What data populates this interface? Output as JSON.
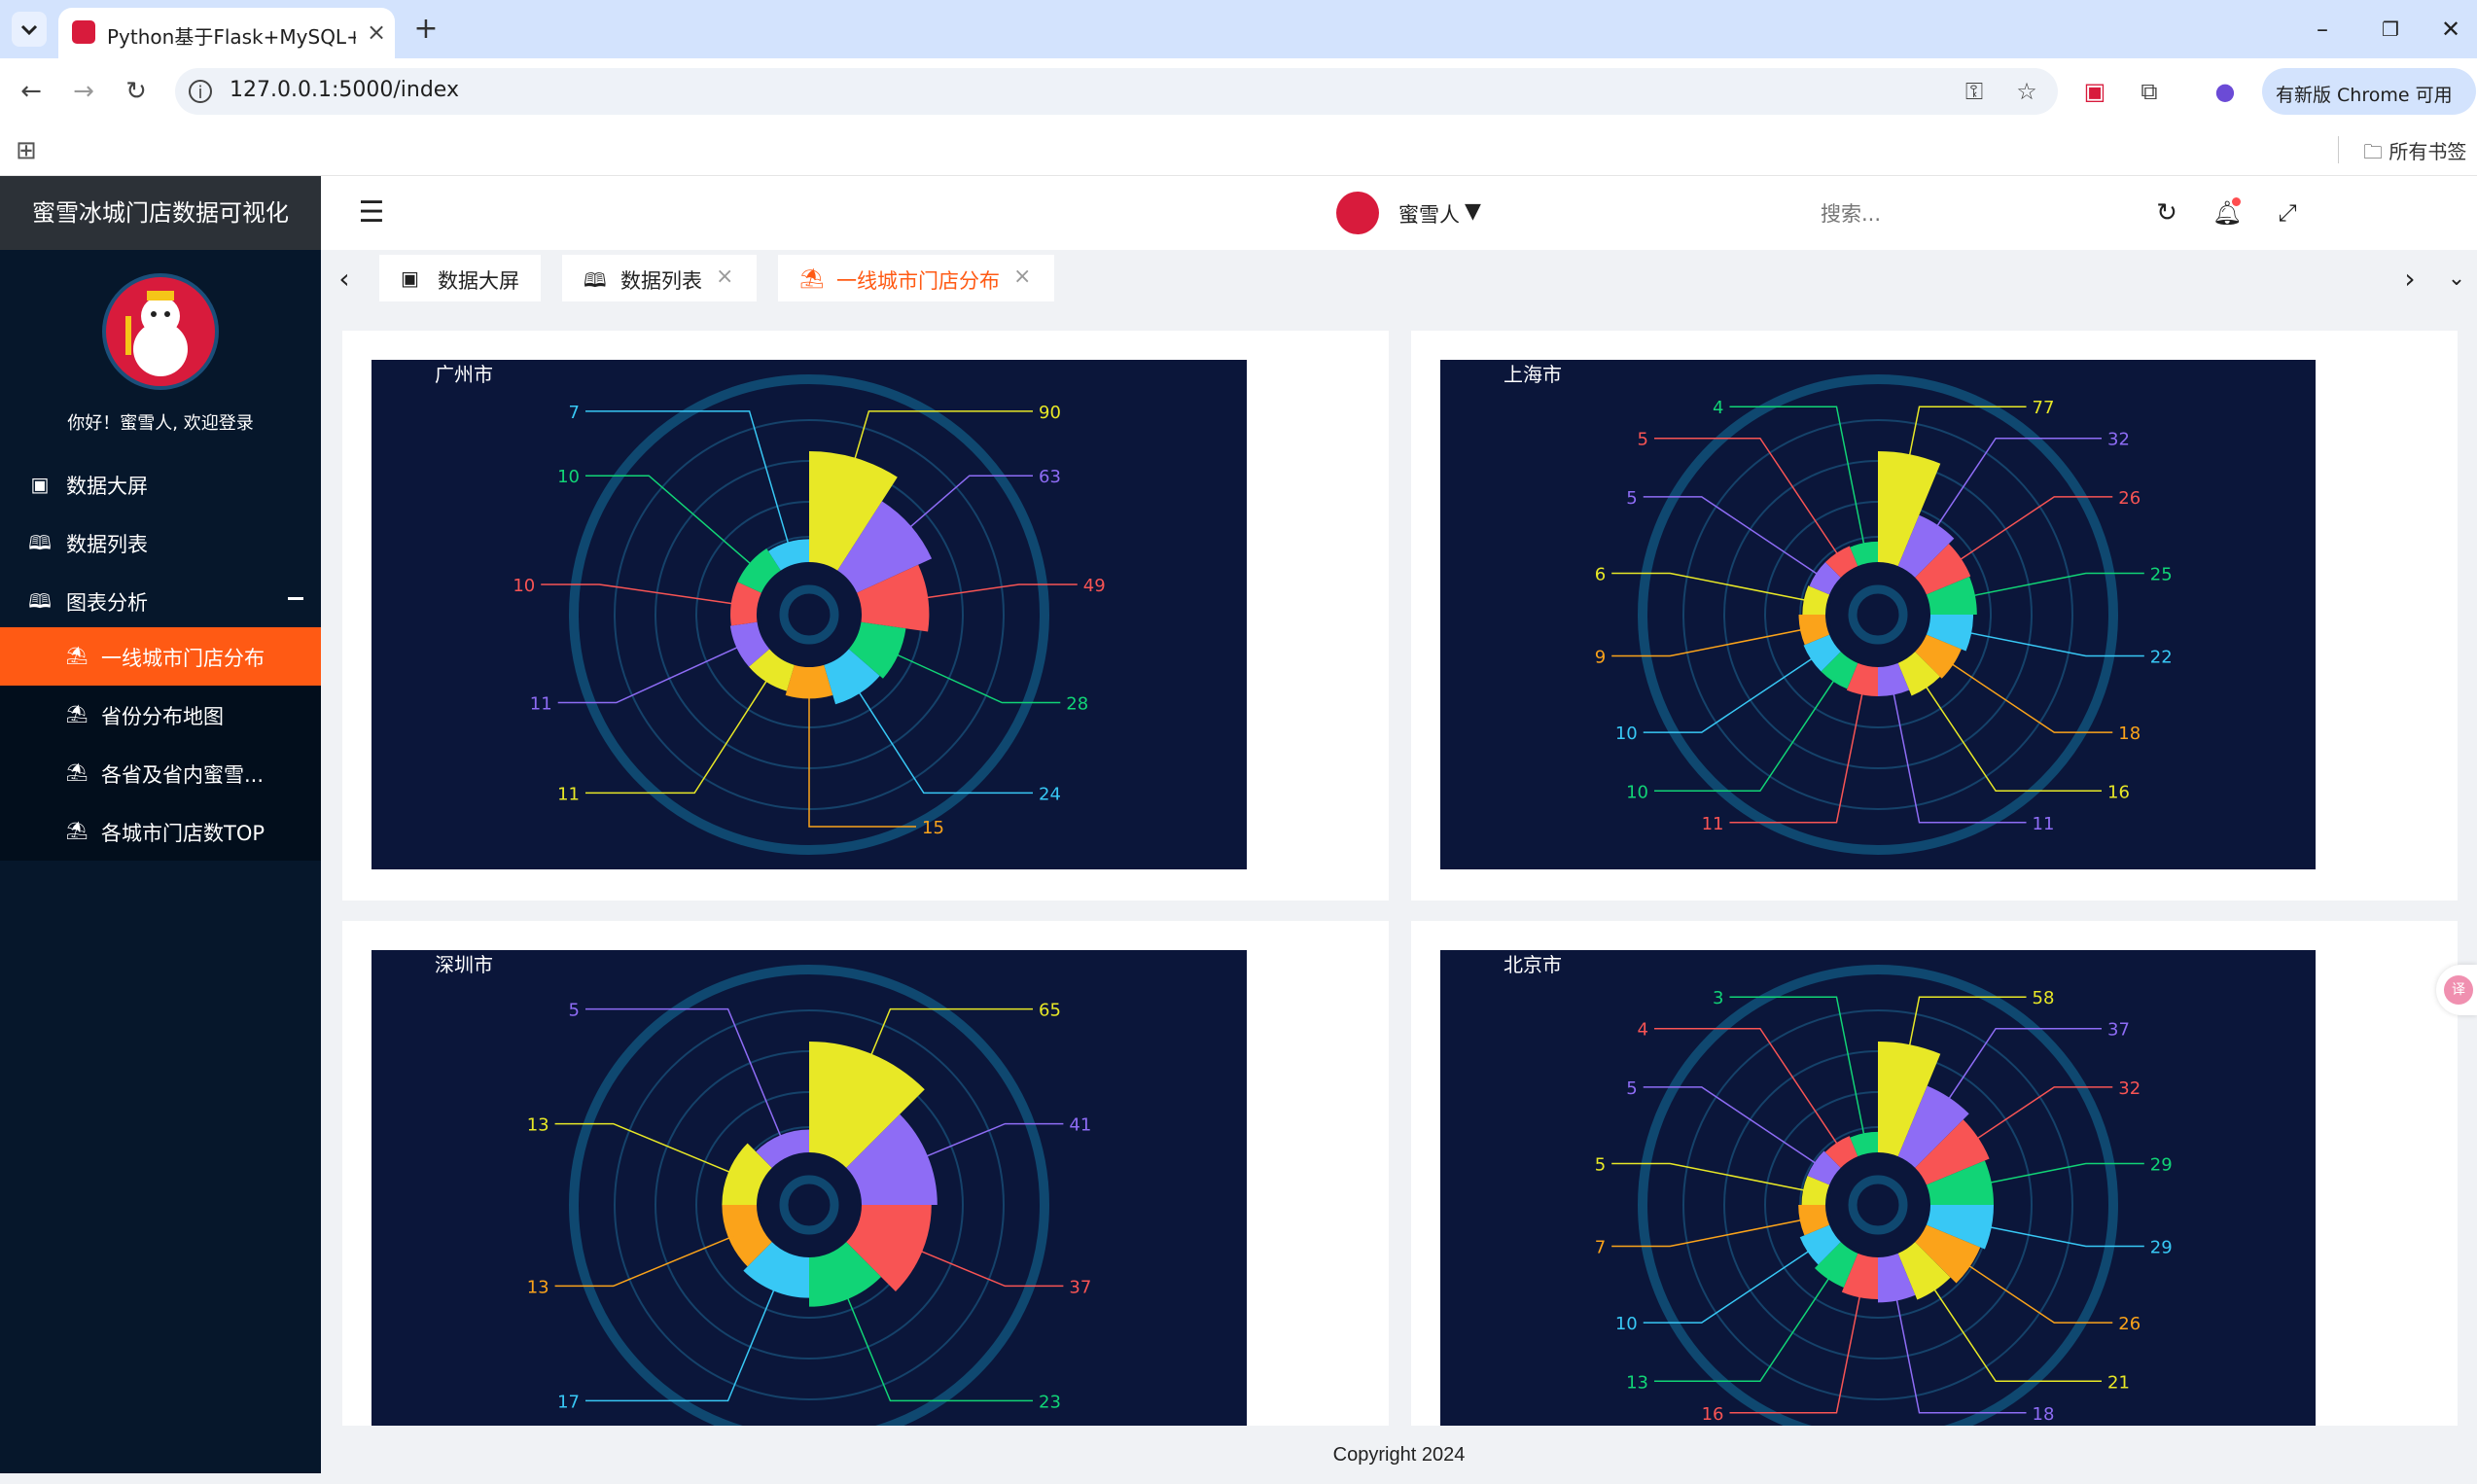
{
  "browser": {
    "tab_title": "Python基于Flask+MySQL+ECharts",
    "url": "127.0.0.1:5000/index",
    "update_button": "有新版 Chrome 可用",
    "bookmarks_folder": "所有书签"
  },
  "sidebar": {
    "brand": "蜜雪冰城门店数据可视化",
    "welcome": "你好！蜜雪人, 欢迎登录",
    "menu": [
      {
        "label": "数据大屏",
        "icon": "monitor-icon"
      },
      {
        "label": "数据列表",
        "icon": "book-icon"
      },
      {
        "label": "图表分析",
        "icon": "book-icon"
      }
    ],
    "submenu": [
      {
        "label": "一线城市门店分布",
        "icon": "palm-tree-icon",
        "active": true
      },
      {
        "label": "省份分布地图",
        "icon": "palm-tree-icon"
      },
      {
        "label": "各省及省内蜜雪...",
        "icon": "palm-tree-icon"
      },
      {
        "label": "各城市门店数TOP",
        "icon": "palm-tree-icon"
      }
    ]
  },
  "header": {
    "search_placeholder": "搜索...",
    "user_name": "蜜雪人"
  },
  "tabs": [
    {
      "label": "数据大屏",
      "icon": "monitor-icon",
      "closable": false
    },
    {
      "label": "数据列表",
      "icon": "book-icon",
      "closable": true
    },
    {
      "label": "一线城市门店分布",
      "icon": "palm-tree-icon",
      "closable": true,
      "active": true
    }
  ],
  "footer": "Copyright 2024",
  "colors": [
    "#e8e826",
    "#8e6cf5",
    "#f85454",
    "#11d476",
    "#38c8f5",
    "#fba31a",
    "#e8e826",
    "#8e6cf5",
    "#f85454",
    "#11d476",
    "#38c8f5",
    "#fba31a",
    "#e8e826",
    "#8e6cf5",
    "#f85454",
    "#11d476"
  ],
  "chart_data": [
    {
      "type": "pie",
      "subtype": "rose",
      "title": "广州市",
      "values": [
        90,
        63,
        49,
        28,
        24,
        15,
        11,
        11,
        10,
        10,
        7
      ]
    },
    {
      "type": "pie",
      "subtype": "rose",
      "title": "上海市",
      "values": [
        77,
        32,
        26,
        25,
        22,
        18,
        16,
        11,
        11,
        10,
        10,
        9,
        6,
        5,
        5,
        4
      ]
    },
    {
      "type": "pie",
      "subtype": "rose",
      "title": "深圳市",
      "values": [
        65,
        41,
        37,
        23,
        17,
        13,
        13,
        5
      ]
    },
    {
      "type": "pie",
      "subtype": "rose",
      "title": "北京市",
      "values": [
        58,
        37,
        32,
        29,
        29,
        26,
        21,
        18,
        16,
        13,
        10,
        7,
        5,
        5,
        4,
        3
      ]
    }
  ]
}
